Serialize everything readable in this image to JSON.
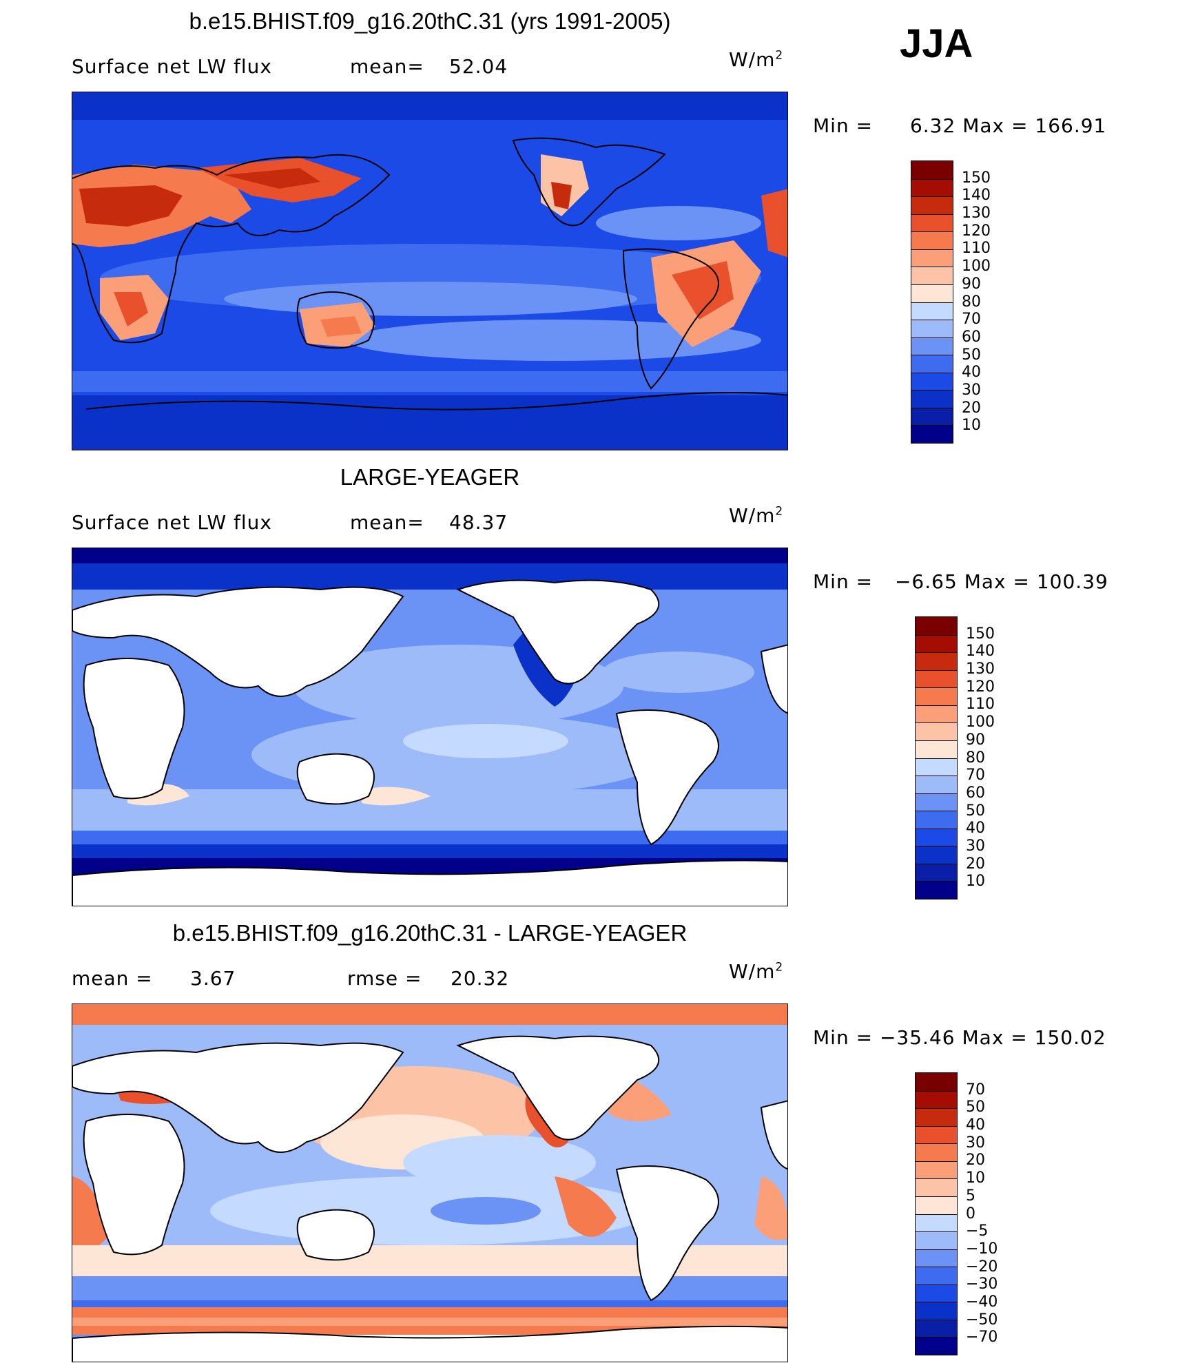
{
  "season": "JJA",
  "units_base": "W/m",
  "units_exp": "2",
  "panels": [
    {
      "title": "b.e15.BHIST.f09_g16.20thC.31 (yrs 1991-2005)",
      "left_label": "Surface net LW flux",
      "stat_label": "mean=",
      "stat_value": "52.04",
      "minmax_min_label": "Min",
      "minmax_eq": "=",
      "min_value": "6.32",
      "minmax_max_label": "Max",
      "max_value": "166.91",
      "levels": [
        "150",
        "140",
        "130",
        "120",
        "110",
        "100",
        "90",
        "80",
        "70",
        "60",
        "50",
        "40",
        "30",
        "20",
        "10"
      ]
    },
    {
      "title": "LARGE-YEAGER",
      "left_label": "Surface net LW flux",
      "stat_label": "mean=",
      "stat_value": "48.37",
      "minmax_min_label": "Min",
      "minmax_eq": "=",
      "min_value": "−6.65",
      "minmax_max_label": "Max",
      "max_value": "100.39",
      "levels": [
        "150",
        "140",
        "130",
        "120",
        "110",
        "100",
        "90",
        "80",
        "70",
        "60",
        "50",
        "40",
        "30",
        "20",
        "10"
      ]
    },
    {
      "title": "b.e15.BHIST.f09_g16.20thC.31 - LARGE-YEAGER",
      "left_label": "mean =",
      "left_value": "3.67",
      "stat_label": "rmse =",
      "stat_value": "20.32",
      "minmax_min_label": "Min",
      "minmax_eq": "=",
      "min_value": "−35.46",
      "minmax_max_label": "Max",
      "max_value": "150.02",
      "levels": [
        "70",
        "50",
        "40",
        "30",
        "20",
        "10",
        "5",
        "0",
        "−5",
        "−10",
        "−20",
        "−30",
        "−40",
        "−50",
        "−70"
      ]
    }
  ],
  "chart_data": [
    {
      "type": "heatmap",
      "title": "b.e15.BHIST.f09_g16.20thC.31 (yrs 1991-2005)",
      "variable": "Surface net LW flux",
      "units": "W/m2",
      "mean": 52.04,
      "min": 6.32,
      "max": 166.91,
      "contour_levels": [
        10,
        20,
        30,
        40,
        50,
        60,
        70,
        80,
        90,
        100,
        110,
        120,
        130,
        140,
        150
      ],
      "colors": [
        "#00008b",
        "#0a1fa8",
        "#0b32c8",
        "#1b4ae6",
        "#3d6cf0",
        "#6b92f5",
        "#9dbbf8",
        "#c5daff",
        "#fde6d6",
        "#fcc3a6",
        "#fb9f78",
        "#f57a4e",
        "#e8512b",
        "#c62b0e",
        "#a50d03",
        "#7a0000"
      ]
    },
    {
      "type": "heatmap",
      "title": "LARGE-YEAGER",
      "variable": "Surface net LW flux",
      "units": "W/m2",
      "mean": 48.37,
      "min": -6.65,
      "max": 100.39,
      "contour_levels": [
        10,
        20,
        30,
        40,
        50,
        60,
        70,
        80,
        90,
        100,
        110,
        120,
        130,
        140,
        150
      ],
      "colors": [
        "#00008b",
        "#0a1fa8",
        "#0b32c8",
        "#1b4ae6",
        "#3d6cf0",
        "#6b92f5",
        "#9dbbf8",
        "#c5daff",
        "#fde6d6",
        "#fcc3a6",
        "#fb9f78",
        "#f57a4e",
        "#e8512b",
        "#c62b0e",
        "#a50d03",
        "#7a0000"
      ]
    },
    {
      "type": "heatmap",
      "title": "b.e15.BHIST.f09_g16.20thC.31 - LARGE-YEAGER",
      "units": "W/m2",
      "mean": 3.67,
      "rmse": 20.32,
      "min": -35.46,
      "max": 150.02,
      "contour_levels": [
        -70,
        -50,
        -40,
        -30,
        -20,
        -10,
        -5,
        0,
        5,
        10,
        20,
        30,
        40,
        50,
        70
      ],
      "colors": [
        "#00008b",
        "#0a1fa8",
        "#0b32c8",
        "#1b4ae6",
        "#3d6cf0",
        "#6b92f5",
        "#9dbbf8",
        "#c5daff",
        "#fde6d6",
        "#fcc3a6",
        "#fb9f78",
        "#f57a4e",
        "#e8512b",
        "#c62b0e",
        "#a50d03",
        "#7a0000"
      ]
    }
  ]
}
